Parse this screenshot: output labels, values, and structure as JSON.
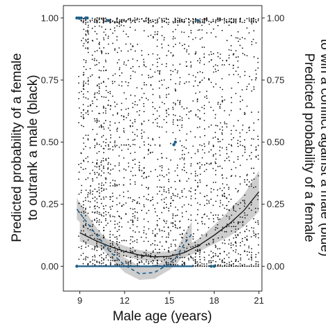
{
  "chart_data": {
    "type": "scatter",
    "xlabel": "Male age (years)",
    "ylabel_left": [
      "Predicted probability of a female",
      "to outrank a male (black)"
    ],
    "ylabel_right": [
      "Predicted probability of a female",
      "to win a conflict against a male (blue)"
    ],
    "xlim": [
      7.9,
      21.2
    ],
    "ylim": [
      -0.1,
      1.05
    ],
    "x_ticks": [
      9,
      12,
      15,
      18,
      21
    ],
    "y_ticks": [
      0.0,
      0.25,
      0.5,
      0.75,
      1.0
    ],
    "y_tick_labels": [
      "0.00",
      "0.25",
      "0.50",
      "0.75",
      "1.00"
    ],
    "grid": false,
    "legend": "none",
    "colors": {
      "black_series": "#111111",
      "blue_series": "#1f5f8b",
      "ribbon": "#bdbdbd"
    },
    "series": [
      {
        "color": "black",
        "fit": "quadratic",
        "curve_x": [
          9.0,
          10.0,
          11.0,
          12.0,
          13.0,
          14.0,
          15.0,
          16.0,
          17.0,
          18.0,
          19.0,
          20.0,
          21.0
        ],
        "curve_y": [
          0.135,
          0.105,
          0.08,
          0.06,
          0.045,
          0.038,
          0.04,
          0.055,
          0.085,
          0.125,
          0.17,
          0.225,
          0.3
        ],
        "ci_lower": [
          0.1,
          0.08,
          0.06,
          0.04,
          0.025,
          0.02,
          0.022,
          0.035,
          0.06,
          0.09,
          0.12,
          0.16,
          0.22
        ],
        "ci_upper": [
          0.175,
          0.135,
          0.105,
          0.082,
          0.065,
          0.058,
          0.06,
          0.078,
          0.112,
          0.165,
          0.225,
          0.29,
          0.385
        ],
        "points_x_columns": [
          8.95,
          9.1,
          9.25,
          9.4,
          9.55,
          9.7,
          9.85,
          10.0,
          10.15,
          10.3,
          10.45,
          10.6,
          10.75,
          10.9,
          11.05,
          11.2,
          11.35,
          11.5,
          11.65,
          11.8,
          11.95,
          12.1,
          12.25,
          12.4,
          12.55,
          12.7,
          12.85,
          13.0,
          13.15,
          13.3,
          13.45,
          13.6,
          13.75,
          13.9,
          14.05,
          14.2,
          14.35,
          14.5,
          14.65,
          14.8,
          14.95,
          15.1,
          15.25,
          15.4,
          15.55,
          15.7,
          15.85,
          16.0,
          16.15,
          16.3,
          16.45,
          16.6,
          16.75,
          16.9,
          17.05,
          17.2,
          17.35,
          17.5,
          17.65,
          17.8,
          17.95,
          18.1,
          18.25,
          18.4,
          18.55,
          18.7,
          18.85,
          19.0,
          19.15,
          19.3,
          19.45,
          19.6,
          19.75,
          19.9,
          20.05,
          20.2,
          20.35,
          20.5,
          20.65,
          20.8,
          20.95
        ]
      },
      {
        "color": "blue",
        "fit": "quadratic",
        "curve_x": [
          8.8,
          10.0,
          11.0,
          12.0,
          13.0,
          14.0,
          15.0,
          15.5,
          16.0,
          16.5
        ],
        "curve_y": [
          0.23,
          0.135,
          0.06,
          0.005,
          -0.03,
          -0.025,
          0.01,
          0.04,
          0.09,
          0.13
        ],
        "ci_lower": [
          0.19,
          0.11,
          0.035,
          -0.025,
          -0.055,
          -0.05,
          -0.015,
          0.01,
          0.05,
          0.085
        ],
        "ci_upper": [
          0.275,
          0.165,
          0.09,
          0.035,
          0.0,
          0.0,
          0.035,
          0.07,
          0.13,
          0.18
        ],
        "points": [
          {
            "x": 8.8,
            "y": 1.0
          },
          {
            "x": 8.95,
            "y": 1.0
          },
          {
            "x": 9.1,
            "y": 1.0
          },
          {
            "x": 9.4,
            "y": 1.0
          },
          {
            "x": 9.5,
            "y": 1.0
          },
          {
            "x": 10.9,
            "y": 0.99
          },
          {
            "x": 16.9,
            "y": 0.99
          },
          {
            "x": 15.3,
            "y": 0.49
          },
          {
            "x": 15.4,
            "y": 0.5
          },
          {
            "x": 8.8,
            "y": 0.0
          },
          {
            "x": 17.8,
            "y": 0.0
          },
          {
            "x": 18.0,
            "y": 0.0
          }
        ],
        "baseline_segment": [
          8.8,
          16.6
        ]
      }
    ]
  }
}
